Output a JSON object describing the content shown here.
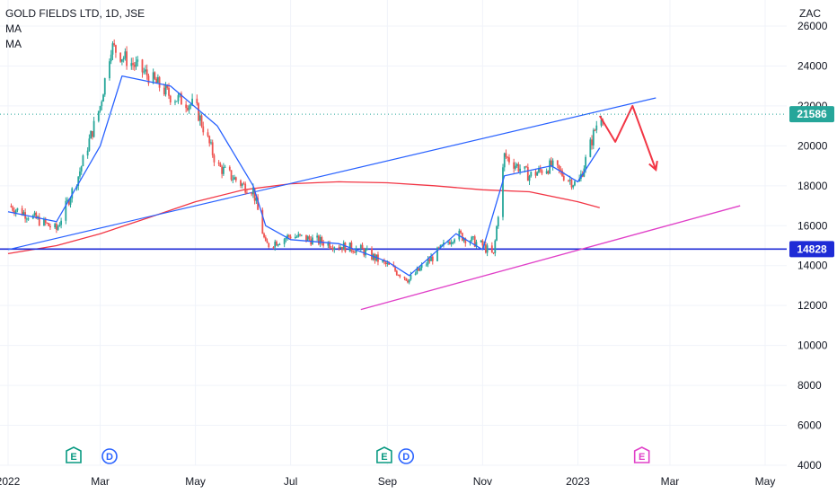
{
  "legend": {
    "symbol_line": "GOLD FIELDS LTD, 1D, JSE",
    "ma1": "MA",
    "ma2": "MA"
  },
  "currency": "ZAC",
  "last_price": "21586",
  "level_price": "14828",
  "colors": {
    "up": "#26a69a",
    "down": "#ef5350",
    "ma_fast": "#2962ff",
    "ma_slow": "#f23645",
    "trendline": "#2962ff",
    "support": "#1e2bd6",
    "channel": "#e040c8",
    "projection": "#f23645",
    "earnings": "#089981",
    "dividend": "#2962ff"
  },
  "events": [
    {
      "type": "earnings",
      "label": "E",
      "month": "Feb"
    },
    {
      "type": "dividend",
      "label": "D",
      "month": "Mar"
    },
    {
      "type": "earnings",
      "label": "E",
      "month": "Sep"
    },
    {
      "type": "dividend",
      "label": "D",
      "month": "Sep"
    },
    {
      "type": "earnings-future",
      "label": "E",
      "month": "Feb 2023"
    }
  ],
  "chart_data": {
    "type": "line",
    "title": "GOLD FIELDS LTD, 1D, JSE",
    "xlabel": "",
    "ylabel": "ZAC",
    "ylim": [
      4000,
      26000
    ],
    "y_ticks": [
      4000,
      6000,
      8000,
      10000,
      12000,
      14000,
      16000,
      18000,
      20000,
      22000,
      24000,
      26000
    ],
    "x_ticks": [
      "2022",
      "Mar",
      "May",
      "Jul",
      "Sep",
      "Nov",
      "2023",
      "Mar",
      "May"
    ],
    "series": [
      {
        "name": "Price",
        "x": [
          "2022-01-01",
          "2022-01-15",
          "2022-02-01",
          "2022-02-15",
          "2022-03-01",
          "2022-03-08",
          "2022-03-15",
          "2022-04-01",
          "2022-04-15",
          "2022-05-01",
          "2022-05-15",
          "2022-06-01",
          "2022-06-07",
          "2022-06-15",
          "2022-07-01",
          "2022-07-15",
          "2022-08-01",
          "2022-08-15",
          "2022-09-01",
          "2022-09-15",
          "2022-10-01",
          "2022-10-15",
          "2022-11-01",
          "2022-11-08",
          "2022-11-15",
          "2022-12-01",
          "2022-12-15",
          "2023-01-01",
          "2023-01-15"
        ],
        "values": [
          17000,
          16500,
          15800,
          18500,
          22000,
          25000,
          24500,
          23500,
          22500,
          22000,
          19000,
          18000,
          17800,
          15000,
          15500,
          15300,
          15000,
          14800,
          14000,
          13300,
          14500,
          15600,
          15000,
          14500,
          19500,
          18500,
          19000,
          18000,
          21586
        ]
      },
      {
        "name": "MA",
        "x": [
          "2022-01-01",
          "2022-02-01",
          "2022-03-01",
          "2022-03-15",
          "2022-04-15",
          "2022-05-15",
          "2022-06-07",
          "2022-06-15",
          "2022-07-01",
          "2022-08-01",
          "2022-09-01",
          "2022-09-15",
          "2022-10-15",
          "2022-11-01",
          "2022-11-15",
          "2022-12-15",
          "2023-01-01",
          "2023-01-15"
        ],
        "values": [
          16700,
          16200,
          20000,
          23500,
          23000,
          21000,
          18000,
          16000,
          15300,
          15100,
          14200,
          13500,
          15600,
          14800,
          18500,
          19000,
          18200,
          19900
        ]
      },
      {
        "name": "MA",
        "x": [
          "2022-01-01",
          "2022-02-01",
          "2022-03-01",
          "2022-04-01",
          "2022-05-01",
          "2022-06-01",
          "2022-07-01",
          "2022-08-01",
          "2022-09-01",
          "2022-10-01",
          "2022-11-01",
          "2022-12-01",
          "2023-01-01",
          "2023-01-15"
        ],
        "values": [
          14600,
          15000,
          15600,
          16400,
          17200,
          17800,
          18100,
          18200,
          18150,
          18000,
          17800,
          17700,
          17200,
          16900
        ]
      }
    ],
    "annotations": {
      "horizontal_level": 14828,
      "last_price_line": 21586,
      "trendline": {
        "from": [
          "2022-01-01",
          14800
        ],
        "to": [
          "2023-02-20",
          22400
        ]
      },
      "channel_line": {
        "from": [
          "2022-08-15",
          11800
        ],
        "to": [
          "2023-04-15",
          17000
        ]
      },
      "projection_path": {
        "x": [
          "2023-01-15",
          "2023-01-25",
          "2023-02-05",
          "2023-02-20"
        ],
        "values": [
          21500,
          20200,
          22000,
          18800
        ]
      }
    },
    "grid": true,
    "legend_position": "top-left"
  }
}
